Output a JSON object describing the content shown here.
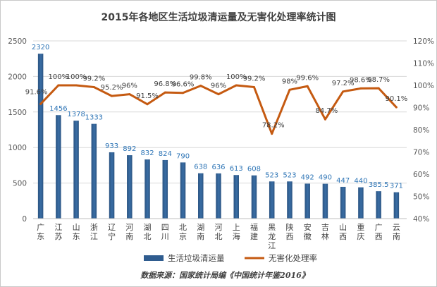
{
  "chart_data": {
    "type": "bar",
    "title": "2015年各地区生活垃圾清运量及无害化处理率统计图",
    "source": "数据来源：国家统计局编《中国统计年鉴2016》",
    "categories": [
      "广东",
      "江苏",
      "山东",
      "浙江",
      "辽宁",
      "河南",
      "湖北",
      "四川",
      "北京",
      "湖南",
      "河北",
      "上海",
      "福建",
      "黑龙江",
      "陕西",
      "安徽",
      "吉林",
      "山西",
      "重庆",
      "广西",
      "云南"
    ],
    "series": [
      {
        "name": "生活垃圾清运量",
        "type": "bar",
        "axis": "left",
        "color": "#2f5c8f",
        "values": [
          2320,
          1456,
          1378,
          1333,
          933,
          892,
          832,
          824,
          790,
          638,
          636,
          613,
          608,
          523,
          523,
          492,
          490,
          447,
          440,
          385.5,
          371
        ],
        "labels": [
          "2320",
          "1456",
          "1378",
          "1333",
          "933",
          "892",
          "832",
          "824",
          "790",
          "638",
          "636",
          "613",
          "608",
          "523",
          "523",
          "492",
          "490",
          "447",
          "440",
          "385.5",
          "371"
        ]
      },
      {
        "name": "无害化处理率",
        "type": "line",
        "axis": "right",
        "color": "#c55a11",
        "values": [
          91.6,
          100,
          100,
          99.2,
          95.2,
          96,
          91.5,
          96.8,
          96.6,
          99.8,
          96,
          100,
          99.2,
          78.2,
          98,
          99.6,
          84.7,
          97.2,
          98.6,
          98.7,
          90.1
        ],
        "labels": [
          "91.6%",
          "100%",
          "100%",
          "99.2%",
          "95.2%",
          "96%",
          "91.5%",
          "96.8%",
          "96.6%",
          "99.8%",
          "96%",
          "100%",
          "99.2%",
          "78.2%",
          "98%",
          "99.6%",
          "84.7%",
          "97.2%",
          "98.6%",
          "98.7%",
          "90.1%"
        ]
      }
    ],
    "y_left": {
      "min": 0,
      "max": 2500,
      "ticks": [
        0,
        500,
        1000,
        1500,
        2000,
        2500
      ]
    },
    "y_right": {
      "min": 40,
      "max": 120,
      "ticks": [
        "40%",
        "50%",
        "60%",
        "70%",
        "80%",
        "90%",
        "100%",
        "110%",
        "120%"
      ]
    },
    "grid": true,
    "legend_position": "bottom"
  }
}
